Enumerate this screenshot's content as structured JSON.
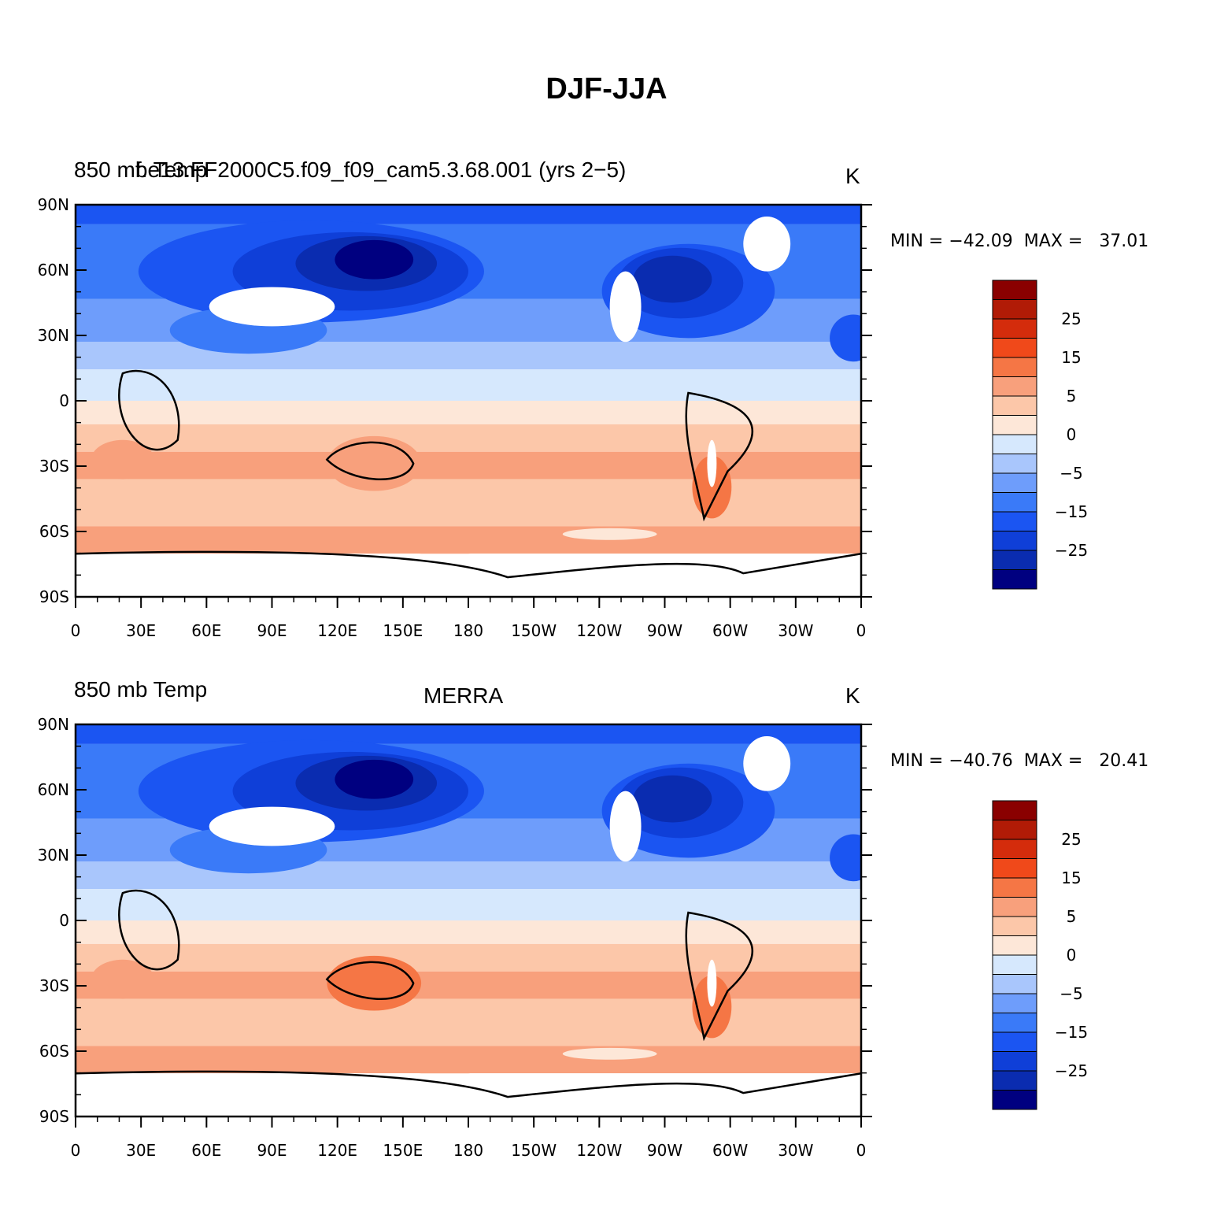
{
  "title": "DJF-JJA",
  "colors": [
    "#000080",
    "#0a2cb0",
    "#0f3fd8",
    "#1b55f2",
    "#3a7af8",
    "#6e9dfb",
    "#a9c6fc",
    "#d6e8fd",
    "#fde7d8",
    "#fcc7a9",
    "#f8a07c",
    "#f57645",
    "#f0491a",
    "#d42c0c",
    "#b11b06",
    "#8a0000"
  ],
  "colorbar_labels": [
    "25",
    "15",
    "5",
    "0",
    "−5",
    "−15",
    "−25"
  ],
  "lat_labels": [
    "90N",
    "60N",
    "30N",
    "0",
    "30S",
    "60S",
    "90S"
  ],
  "lon_labels": [
    "0",
    "30E",
    "60E",
    "90E",
    "120E",
    "150E",
    "180",
    "150W",
    "120W",
    "90W",
    "60W",
    "30W",
    "0"
  ],
  "panels": [
    {
      "left_title": "850 mb Temp",
      "center_title": "f.e13.FF2000C5.f09_f09_cam5.3.68.001 (yrs 2−5)",
      "units": "K",
      "min_label": "MIN = ",
      "min_value": "−42.09",
      "max_label": "MAX = ",
      "max_value": "37.01"
    },
    {
      "left_title": "850 mb Temp",
      "center_title": "MERRA",
      "units": "K",
      "min_label": "MIN = ",
      "min_value": "−40.76",
      "max_label": "MAX = ",
      "max_value": "20.41"
    }
  ]
}
